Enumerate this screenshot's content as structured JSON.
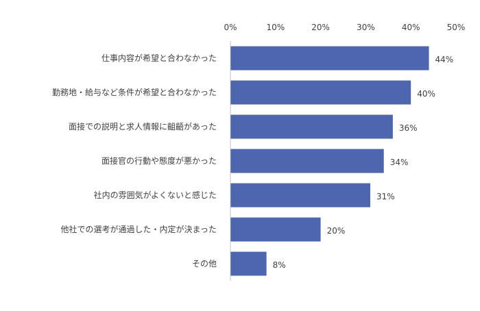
{
  "chart_data": {
    "type": "bar",
    "orientation": "horizontal",
    "title": "",
    "xlabel": "",
    "ylabel": "",
    "categories": [
      "仕事内容が希望と合わなかった",
      "勤務地・給与など条件が希望と合わなかった",
      "面接での説明と求人情報に齟齬があった",
      "面接官の行動や態度が悪かった",
      "社内の雰囲気がよくないと感じた",
      "他社での選考が通過した・内定が決まった",
      "その他"
    ],
    "values": [
      44,
      40,
      36,
      34,
      31,
      20,
      8
    ],
    "data_labels": [
      "44%",
      "40%",
      "36%",
      "34%",
      "31%",
      "20%",
      "8%"
    ],
    "xlim": [
      0,
      50
    ],
    "x_ticks": [
      0,
      10,
      20,
      30,
      40,
      50
    ],
    "x_tick_labels": [
      "0%",
      "10%",
      "20%",
      "30%",
      "40%",
      "50%"
    ],
    "axis_position": "top",
    "grid": false,
    "legend": "none",
    "bar_color": "#4E66AE",
    "text_color": "#404040",
    "axis_color": "#BFBFBF"
  }
}
